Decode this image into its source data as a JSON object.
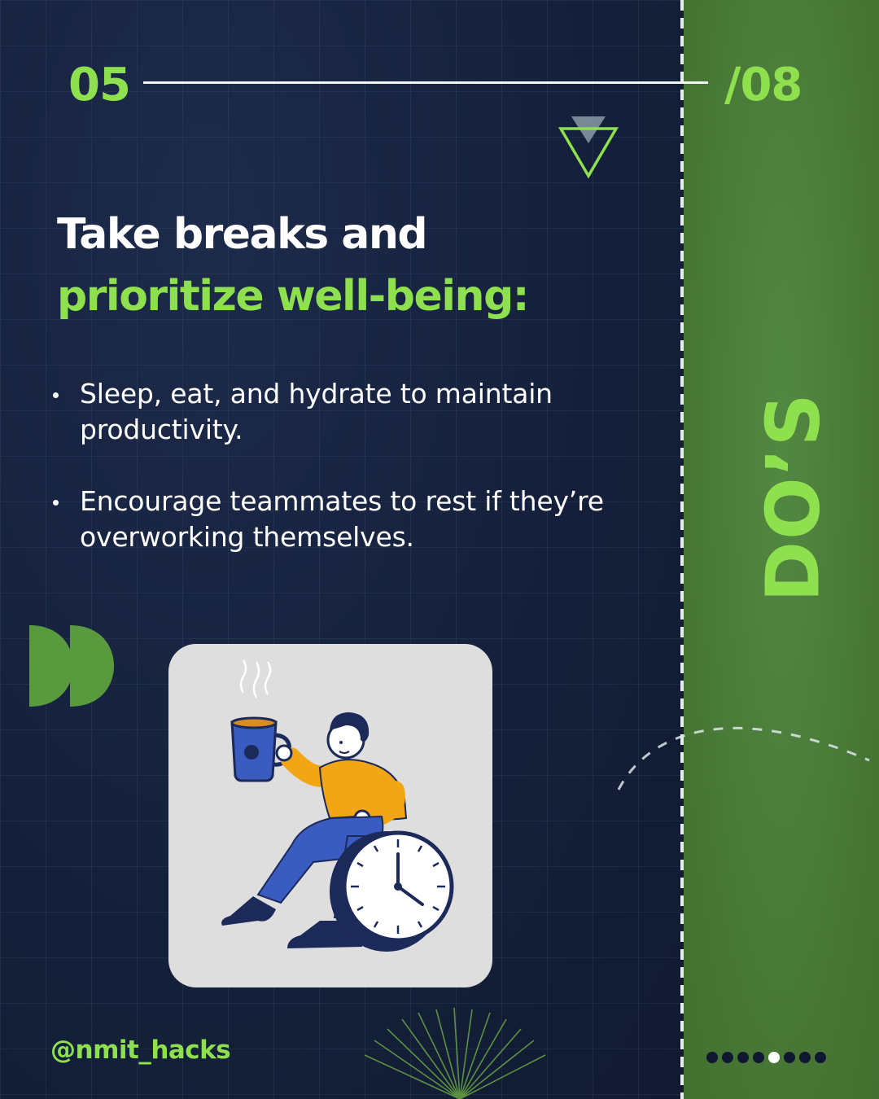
{
  "pagination": {
    "current": "05",
    "total": "/08"
  },
  "title": {
    "line1": "Take breaks and",
    "line2": "prioritize well-being:"
  },
  "bullets": [
    "Sleep, eat, and hydrate to maintain productivity.",
    "Encourage teammates to rest if they’re overworking themselves."
  ],
  "side_label": "DO’S",
  "handle": "@nmit_hacks",
  "carousel": {
    "total_slides": 8,
    "active_index": 5
  },
  "illustration": {
    "subject": "person-sitting-on-clock-holding-coffee-mug"
  },
  "colors": {
    "background_navy": "#16213d",
    "accent_green": "#8fe04f",
    "panel_green": "#4b7d39",
    "text_white": "#ffffff",
    "card_gray": "#dedede"
  },
  "icons": [
    "triangle-marker-icon",
    "double-chevron-icon",
    "burst-lines-icon",
    "dashed-arc-icon"
  ]
}
